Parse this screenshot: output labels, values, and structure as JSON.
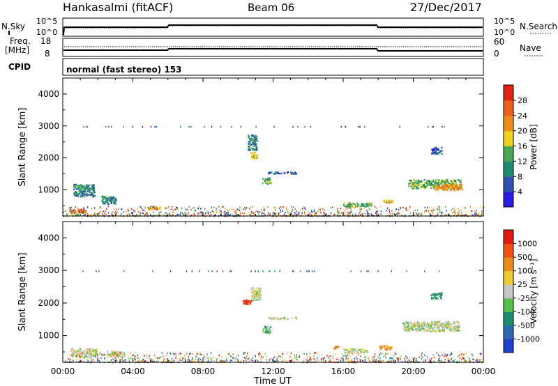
{
  "header": {
    "station": "Hankasalmi (fitACF)",
    "beam": "Beam 06",
    "date": "27/Dec/2017"
  },
  "top_panels": {
    "nsky_label": "N.Sky",
    "nsearch_label": "N.Search",
    "nsearch_ticks": [
      "10^5",
      "10^0"
    ],
    "nsky_ticks": [
      "10^5",
      "10^0"
    ],
    "freq_label_1": "Freq.",
    "freq_label_2": "[MHz]",
    "freq_ticks": [
      "18",
      "8"
    ],
    "nave_label": "Nave",
    "nave_ticks": [
      "60",
      "0"
    ],
    "cpid_label": "CPID",
    "cpid_text": "normal (fast stereo) 153"
  },
  "chart_data": [
    {
      "type": "heatmap",
      "name": "power-panel",
      "ylabel": "Slant Range [km]",
      "yticks": [
        "4000",
        "3000",
        "2000",
        "1000"
      ],
      "ylim": [
        180,
        4500
      ],
      "colorbar_label": "Power [dB]",
      "colorbar_ticks": [
        "28",
        "24",
        "20",
        "16",
        "12",
        "8",
        "4"
      ],
      "colors": [
        "#2a1fe0",
        "#2e4fb4",
        "#1e8c6e",
        "#4aa858",
        "#f0d020",
        "#f08a18",
        "#f0601a",
        "#e02010"
      ],
      "blobs": [
        {
          "t": 1.2,
          "r": 1000,
          "dt": 1.2,
          "dr": 380,
          "lvl": 2
        },
        {
          "t": 0.8,
          "r": 350,
          "dt": 1.0,
          "dr": 120,
          "lvl": 6
        },
        {
          "t": 2.6,
          "r": 700,
          "dt": 0.8,
          "dr": 250,
          "lvl": 2
        },
        {
          "t": 5.2,
          "r": 450,
          "dt": 0.7,
          "dr": 100,
          "lvl": 5
        },
        {
          "t": 10.8,
          "r": 2500,
          "dt": 0.5,
          "dr": 500,
          "lvl": 2
        },
        {
          "t": 10.9,
          "r": 2100,
          "dt": 0.4,
          "dr": 200,
          "lvl": 4
        },
        {
          "t": 11.6,
          "r": 1300,
          "dt": 0.5,
          "dr": 200,
          "lvl": 3
        },
        {
          "t": 12.5,
          "r": 1550,
          "dt": 1.6,
          "dr": 60,
          "lvl": 1
        },
        {
          "t": 16.8,
          "r": 550,
          "dt": 1.6,
          "dr": 130,
          "lvl": 3
        },
        {
          "t": 18.5,
          "r": 650,
          "dt": 0.6,
          "dr": 110,
          "lvl": 4
        },
        {
          "t": 21.2,
          "r": 1200,
          "dt": 3.0,
          "dr": 280,
          "lvl": 3
        },
        {
          "t": 22.0,
          "r": 1100,
          "dt": 1.6,
          "dr": 180,
          "lvl": 5
        },
        {
          "t": 21.3,
          "r": 2250,
          "dt": 0.6,
          "dr": 200,
          "lvl": 1
        }
      ]
    },
    {
      "type": "heatmap",
      "name": "velocity-panel",
      "ylabel": "Slant Range [km]",
      "yticks": [
        "4000",
        "3000",
        "2000",
        "1000"
      ],
      "ylim": [
        180,
        4500
      ],
      "xlabel": "Time UT",
      "xticks": [
        "00:00",
        "04:00",
        "08:00",
        "12:00",
        "16:00",
        "20:00",
        "00:00"
      ],
      "xlim": [
        0,
        24
      ],
      "colorbar_label": "Velocity [m s⁻¹]",
      "colorbar_ticks": [
        "1000",
        "500",
        "100",
        "25",
        "-25",
        "-100",
        "-500",
        "-1000"
      ],
      "colors": [
        "#1f3fd0",
        "#2e6ab4",
        "#1e8c6e",
        "#56c04a",
        "#c8c8c8",
        "#f0c830",
        "#f08a18",
        "#f05010",
        "#e01a10"
      ],
      "blobs": [
        {
          "t": 1.2,
          "r": 500,
          "dt": 1.6,
          "dr": 250,
          "lvl": 4
        },
        {
          "t": 3.0,
          "r": 450,
          "dt": 1.0,
          "dr": 200,
          "lvl": 4
        },
        {
          "t": 10.5,
          "r": 2050,
          "dt": 0.5,
          "dr": 150,
          "lvl": 8
        },
        {
          "t": 11.0,
          "r": 2300,
          "dt": 0.6,
          "dr": 400,
          "lvl": 4
        },
        {
          "t": 11.6,
          "r": 1200,
          "dt": 0.5,
          "dr": 220,
          "lvl": 3
        },
        {
          "t": 12.5,
          "r": 1550,
          "dt": 1.6,
          "dr": 60,
          "lvl": 4
        },
        {
          "t": 16.7,
          "r": 550,
          "dt": 1.4,
          "dr": 120,
          "lvl": 4
        },
        {
          "t": 15.6,
          "r": 650,
          "dt": 0.3,
          "dr": 100,
          "lvl": 6
        },
        {
          "t": 18.4,
          "r": 650,
          "dt": 0.7,
          "dr": 130,
          "lvl": 6
        },
        {
          "t": 21.0,
          "r": 1300,
          "dt": 3.2,
          "dr": 300,
          "lvl": 4
        },
        {
          "t": 21.3,
          "r": 2250,
          "dt": 0.6,
          "dr": 200,
          "lvl": 2
        }
      ]
    }
  ]
}
